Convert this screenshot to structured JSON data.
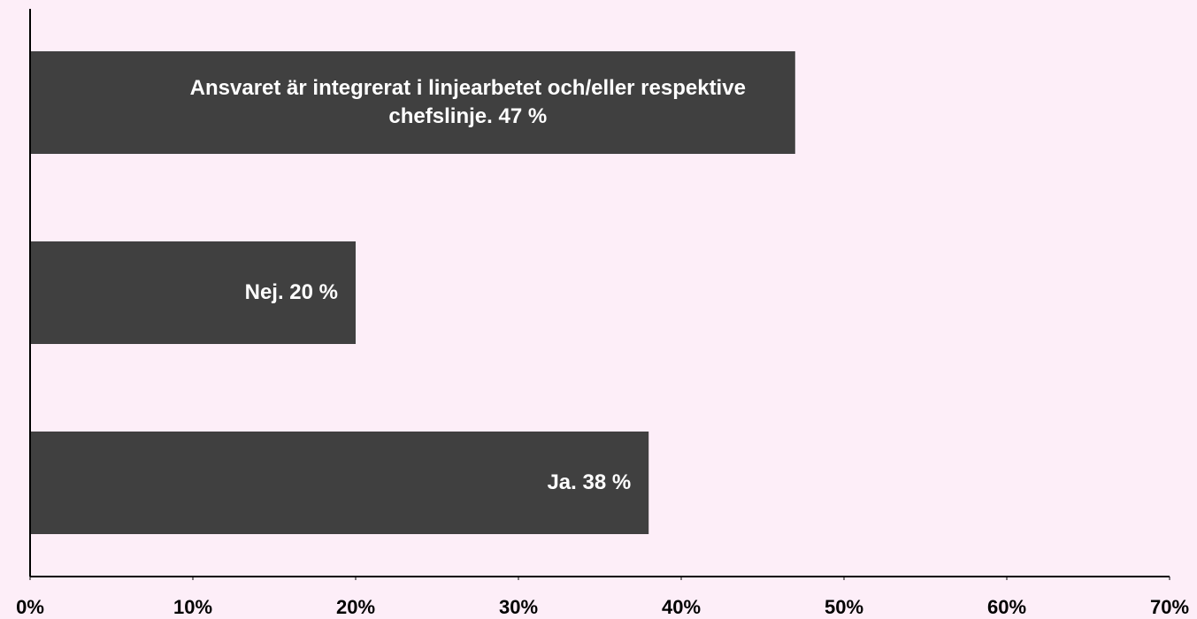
{
  "chart_data": {
    "type": "barh",
    "values": [
      47,
      20,
      38
    ],
    "value_labels": [
      "Ansvaret är integrerat i linjearbetet och/eller respektive chefslinje. 47 %",
      "Nej. 20 %",
      "Ja. 38 %"
    ],
    "color": "#404040",
    "xlim": [
      0,
      70
    ],
    "xticks": [
      {
        "value": 0,
        "label": "0%"
      },
      {
        "value": 10,
        "label": "10%"
      },
      {
        "value": 20,
        "label": "20%"
      },
      {
        "value": 30,
        "label": "30%"
      },
      {
        "value": 40,
        "label": "40%"
      },
      {
        "value": 50,
        "label": "50%"
      },
      {
        "value": 60,
        "label": "60%"
      },
      {
        "value": 70,
        "label": "70%"
      }
    ]
  }
}
